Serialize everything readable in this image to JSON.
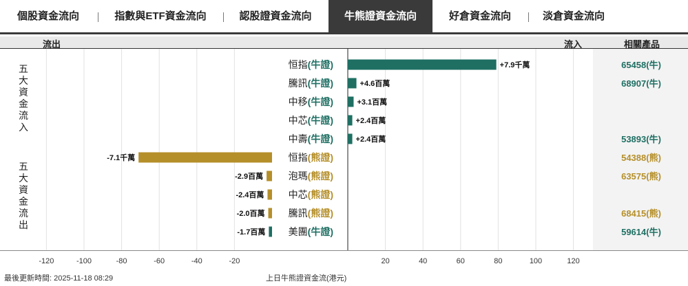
{
  "tabs": [
    {
      "label": "個股資金流向",
      "active": false
    },
    {
      "label": "指數與ETF資金流向",
      "active": false
    },
    {
      "label": "認股證資金流向",
      "active": false
    },
    {
      "label": "牛熊證資金流向",
      "active": true
    },
    {
      "label": "好倉資金流向",
      "active": false
    },
    {
      "label": "淡倉資金流向",
      "active": false
    }
  ],
  "header": {
    "outflow": "流出",
    "inflow": "流入",
    "products": "相關產品"
  },
  "side_labels": {
    "inflow": [
      "五",
      "大",
      "資",
      "金",
      "流",
      "入"
    ],
    "outflow": [
      "五",
      "大",
      "資",
      "金",
      "流",
      "出"
    ]
  },
  "footer": {
    "updated": "最後更新時間: 2025-11-18 08:29",
    "caption": "上日牛熊證資金流(港元)"
  },
  "colors": {
    "bull": "#1f6f63",
    "bear": "#b58f2a",
    "tab_active": "#3a3a3a"
  },
  "chart_data": {
    "type": "bar",
    "orientation": "horizontal",
    "unit": "百萬港元",
    "xlim": [
      -130,
      130
    ],
    "xticks_left": [
      -120,
      -100,
      -80,
      -60,
      -40,
      -20
    ],
    "xticks_right": [
      20,
      40,
      60,
      80,
      100,
      120
    ],
    "rows": [
      {
        "name": "恒指",
        "kind": "牛證",
        "value": 79,
        "label": "+7.9千萬",
        "product": "65458(牛)"
      },
      {
        "name": "騰訊",
        "kind": "牛證",
        "value": 4.6,
        "label": "+4.6百萬",
        "product": "68907(牛)"
      },
      {
        "name": "中移",
        "kind": "牛證",
        "value": 3.1,
        "label": "+3.1百萬",
        "product": ""
      },
      {
        "name": "中芯",
        "kind": "牛證",
        "value": 2.4,
        "label": "+2.4百萬",
        "product": ""
      },
      {
        "name": "中壽",
        "kind": "牛證",
        "value": 2.4,
        "label": "+2.4百萬",
        "product": "53893(牛)"
      },
      {
        "name": "恒指",
        "kind": "熊證",
        "value": -71,
        "label": "-7.1千萬",
        "product": "54388(熊)"
      },
      {
        "name": "泡瑪",
        "kind": "熊證",
        "value": -2.9,
        "label": "-2.9百萬",
        "product": "63575(熊)"
      },
      {
        "name": "中芯",
        "kind": "熊證",
        "value": -2.4,
        "label": "-2.4百萬",
        "product": ""
      },
      {
        "name": "騰訊",
        "kind": "熊證",
        "value": -2.0,
        "label": "-2.0百萬",
        "product": "68415(熊)"
      },
      {
        "name": "美團",
        "kind": "牛證",
        "value": -1.7,
        "label": "-1.7百萬",
        "product": "59614(牛)"
      }
    ]
  }
}
